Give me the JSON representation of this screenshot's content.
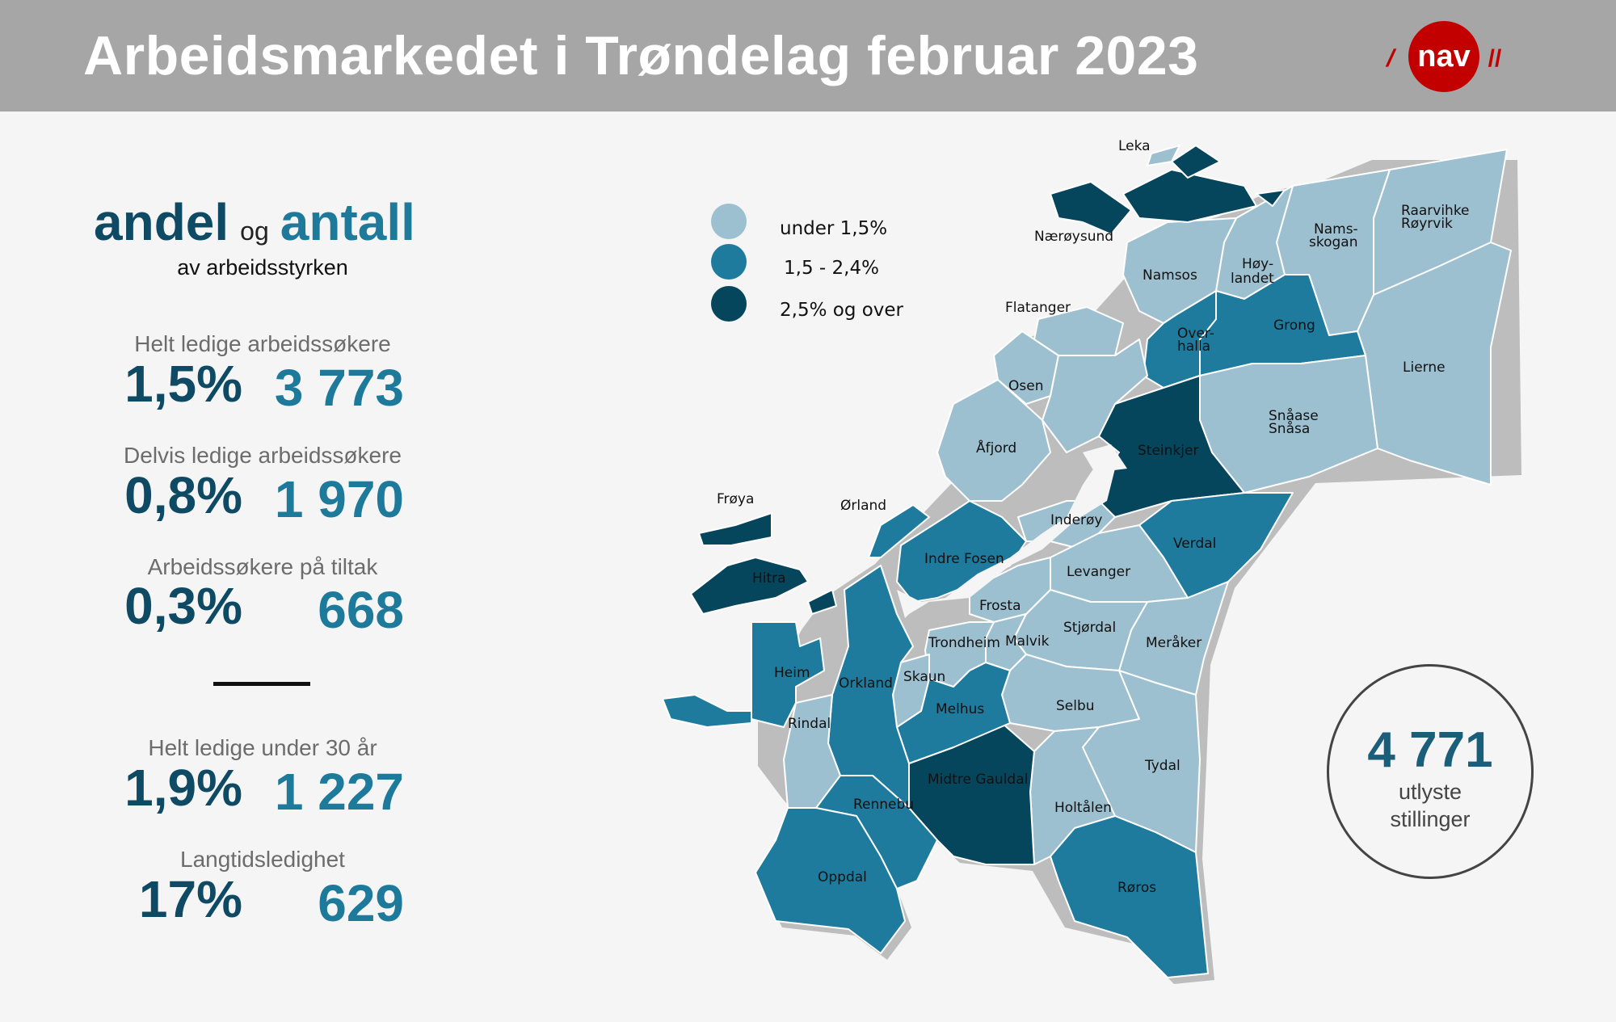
{
  "title": "Arbeidsmarkedet i Trøndelag februar 2023",
  "logo": {
    "text": "nav",
    "slashes": "//",
    "color": "#c30000"
  },
  "colors": {
    "light": "#9dc0d1",
    "mid": "#1e7b9d",
    "dark": "#06465c",
    "stroke": "#ffffff",
    "shadow": "#bdbdbd"
  },
  "heading": {
    "andel": "andel",
    "og": "og",
    "antall": "antall",
    "subtitle": "av arbeidsstyrken"
  },
  "stats": [
    {
      "label": "Helt ledige arbeidssøkere",
      "percent": "1,5%",
      "count": "3 773"
    },
    {
      "label": "Delvis ledige arbeidssøkere",
      "percent": "0,8%",
      "count": "1 970"
    },
    {
      "label": "Arbeidssøkere på tiltak",
      "percent": "0,3%",
      "count": "668"
    },
    {
      "label": "Helt ledige under 30 år",
      "percent": "1,9%",
      "count": "1 227"
    },
    {
      "label": "Langtidsledighet",
      "percent": "17%",
      "count": "629"
    }
  ],
  "legend": [
    {
      "label": "under 1,5%",
      "level": "light"
    },
    {
      "label": "1,5 - 2,4%",
      "level": "mid"
    },
    {
      "label": "2,5% og over",
      "level": "dark"
    }
  ],
  "vacancies": {
    "number": "4 771",
    "line1": "utlyste",
    "line2": "stillinger"
  },
  "municipalities": {
    "leka": "Leka",
    "naeroysund": "Nærøysund",
    "namsos": "Namsos",
    "namsskogan_1": "Nams-",
    "namsskogan_2": "skogan",
    "raarvihke_1": "Raarvihke",
    "raarvihke_2": "Røyrvik",
    "hoylandet_1": "Høy-",
    "hoylandet_2": "landet",
    "flatanger": "Flatanger",
    "overhalla_1": "Over-",
    "overhalla_2": "halla",
    "grong": "Grong",
    "lierne": "Lierne",
    "osen": "Osen",
    "snaase_1": "Snåase",
    "snaase_2": "Snåsa",
    "afjord": "Åfjord",
    "steinkjer": "Steinkjer",
    "froya": "Frøya",
    "orland": "Ørland",
    "inderoy": "Inderøy",
    "verdal": "Verdal",
    "indre_fosen": "Indre Fosen",
    "hitra": "Hitra",
    "levanger": "Levanger",
    "frosta": "Frosta",
    "stjordal": "Stjørdal",
    "trondheim": "Trondheim",
    "malvik": "Malvik",
    "meraker": "Meråker",
    "heim": "Heim",
    "skaun": "Skaun",
    "orkland": "Orkland",
    "melhus": "Melhus",
    "selbu": "Selbu",
    "rindal": "Rindal",
    "midtre_gauldal": "Midtre Gauldal",
    "tydal": "Tydal",
    "rennebu": "Rennebu",
    "holtalen": "Holtålen",
    "oppdal": "Oppdal",
    "roros": "Røros"
  }
}
